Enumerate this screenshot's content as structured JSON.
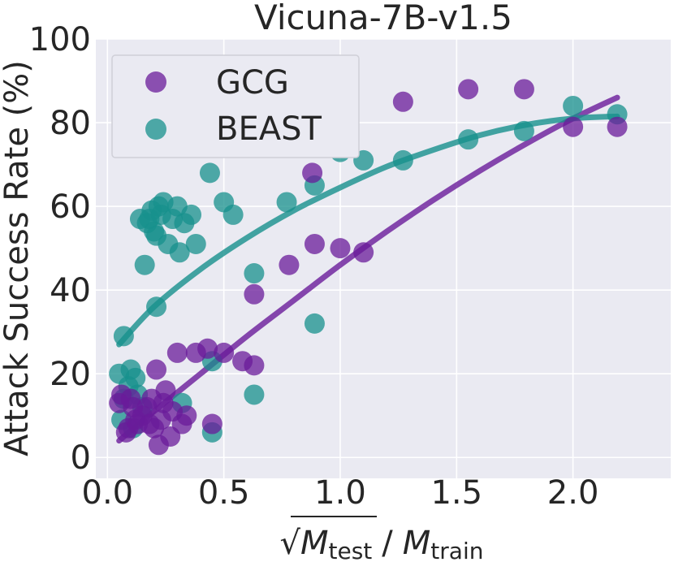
{
  "chart_data": {
    "type": "scatter",
    "title": "Vicuna-7B-v1.5",
    "ylabel": "Attack Success Rate (%)",
    "xlabel": {
      "sqrt_symbol": "√",
      "test_var": "M",
      "test_sub": "test",
      "divider": "/",
      "train_var": "M",
      "train_sub": "train"
    },
    "xlim": [
      -0.05,
      2.42
    ],
    "ylim": [
      -5,
      100
    ],
    "x_ticks": [
      0.0,
      0.5,
      1.0,
      1.5,
      2.0
    ],
    "x_tick_labels": [
      "0.0",
      "0.5",
      "1.0",
      "1.5",
      "2.0"
    ],
    "y_ticks": [
      0,
      20,
      40,
      60,
      80,
      100
    ],
    "y_tick_labels": [
      "0",
      "20",
      "40",
      "60",
      "80",
      "100"
    ],
    "grid": true,
    "legend_position": "top-left",
    "series": [
      {
        "name": "GCG",
        "color": "#6a1b9a",
        "points": [
          [
            0.05,
            13
          ],
          [
            0.06,
            15
          ],
          [
            0.08,
            6
          ],
          [
            0.09,
            7
          ],
          [
            0.1,
            14
          ],
          [
            0.11,
            12
          ],
          [
            0.12,
            9
          ],
          [
            0.13,
            8
          ],
          [
            0.15,
            10
          ],
          [
            0.17,
            12
          ],
          [
            0.18,
            8
          ],
          [
            0.19,
            14
          ],
          [
            0.2,
            7
          ],
          [
            0.21,
            21
          ],
          [
            0.22,
            3
          ],
          [
            0.23,
            9
          ],
          [
            0.24,
            13
          ],
          [
            0.25,
            16
          ],
          [
            0.27,
            5
          ],
          [
            0.28,
            11
          ],
          [
            0.3,
            25
          ],
          [
            0.32,
            8
          ],
          [
            0.34,
            10
          ],
          [
            0.38,
            25
          ],
          [
            0.43,
            26
          ],
          [
            0.45,
            8
          ],
          [
            0.5,
            25
          ],
          [
            0.58,
            23
          ],
          [
            0.63,
            39
          ],
          [
            0.63,
            22
          ],
          [
            0.78,
            46
          ],
          [
            0.88,
            68
          ],
          [
            0.89,
            51
          ],
          [
            1.0,
            50
          ],
          [
            1.1,
            49
          ],
          [
            1.27,
            85
          ],
          [
            1.55,
            88
          ],
          [
            1.79,
            88
          ],
          [
            2.0,
            79
          ],
          [
            2.19,
            79
          ]
        ],
        "fit_curve": [
          [
            0.05,
            4
          ],
          [
            0.2,
            11
          ],
          [
            0.4,
            20
          ],
          [
            0.6,
            29
          ],
          [
            0.8,
            37.5
          ],
          [
            1.0,
            46
          ],
          [
            1.2,
            54
          ],
          [
            1.4,
            61.5
          ],
          [
            1.6,
            68.5
          ],
          [
            1.8,
            75
          ],
          [
            2.0,
            81
          ],
          [
            2.19,
            86
          ]
        ]
      },
      {
        "name": "BEAST",
        "color": "#17908c",
        "points": [
          [
            0.05,
            20
          ],
          [
            0.06,
            9
          ],
          [
            0.07,
            14
          ],
          [
            0.09,
            17
          ],
          [
            0.1,
            21
          ],
          [
            0.11,
            7
          ],
          [
            0.12,
            19
          ],
          [
            0.13,
            15
          ],
          [
            0.14,
            57
          ],
          [
            0.15,
            12
          ],
          [
            0.16,
            46
          ],
          [
            0.17,
            56
          ],
          [
            0.18,
            57
          ],
          [
            0.19,
            59
          ],
          [
            0.2,
            54
          ],
          [
            0.21,
            53
          ],
          [
            0.22,
            60
          ],
          [
            0.23,
            58
          ],
          [
            0.24,
            61
          ],
          [
            0.26,
            51
          ],
          [
            0.28,
            57
          ],
          [
            0.3,
            60
          ],
          [
            0.31,
            49
          ],
          [
            0.32,
            13
          ],
          [
            0.33,
            56
          ],
          [
            0.36,
            58
          ],
          [
            0.38,
            51
          ],
          [
            0.44,
            68
          ],
          [
            0.45,
            23
          ],
          [
            0.45,
            6
          ],
          [
            0.5,
            61
          ],
          [
            0.54,
            58
          ],
          [
            0.63,
            44
          ],
          [
            0.63,
            15
          ],
          [
            0.77,
            61
          ],
          [
            0.89,
            65
          ],
          [
            0.89,
            32
          ],
          [
            1.0,
            73
          ],
          [
            1.1,
            71
          ],
          [
            1.27,
            71
          ],
          [
            1.55,
            76
          ],
          [
            1.79,
            78
          ],
          [
            2.0,
            84
          ],
          [
            2.19,
            82
          ],
          [
            0.07,
            29
          ],
          [
            0.21,
            36
          ]
        ],
        "fit_curve": [
          [
            0.05,
            27
          ],
          [
            0.2,
            36
          ],
          [
            0.4,
            45
          ],
          [
            0.6,
            52.5
          ],
          [
            0.8,
            59
          ],
          [
            1.0,
            64.5
          ],
          [
            1.2,
            69.5
          ],
          [
            1.4,
            73.5
          ],
          [
            1.6,
            77
          ],
          [
            1.8,
            79.5
          ],
          [
            2.0,
            81
          ],
          [
            2.19,
            81.5
          ]
        ]
      }
    ]
  }
}
